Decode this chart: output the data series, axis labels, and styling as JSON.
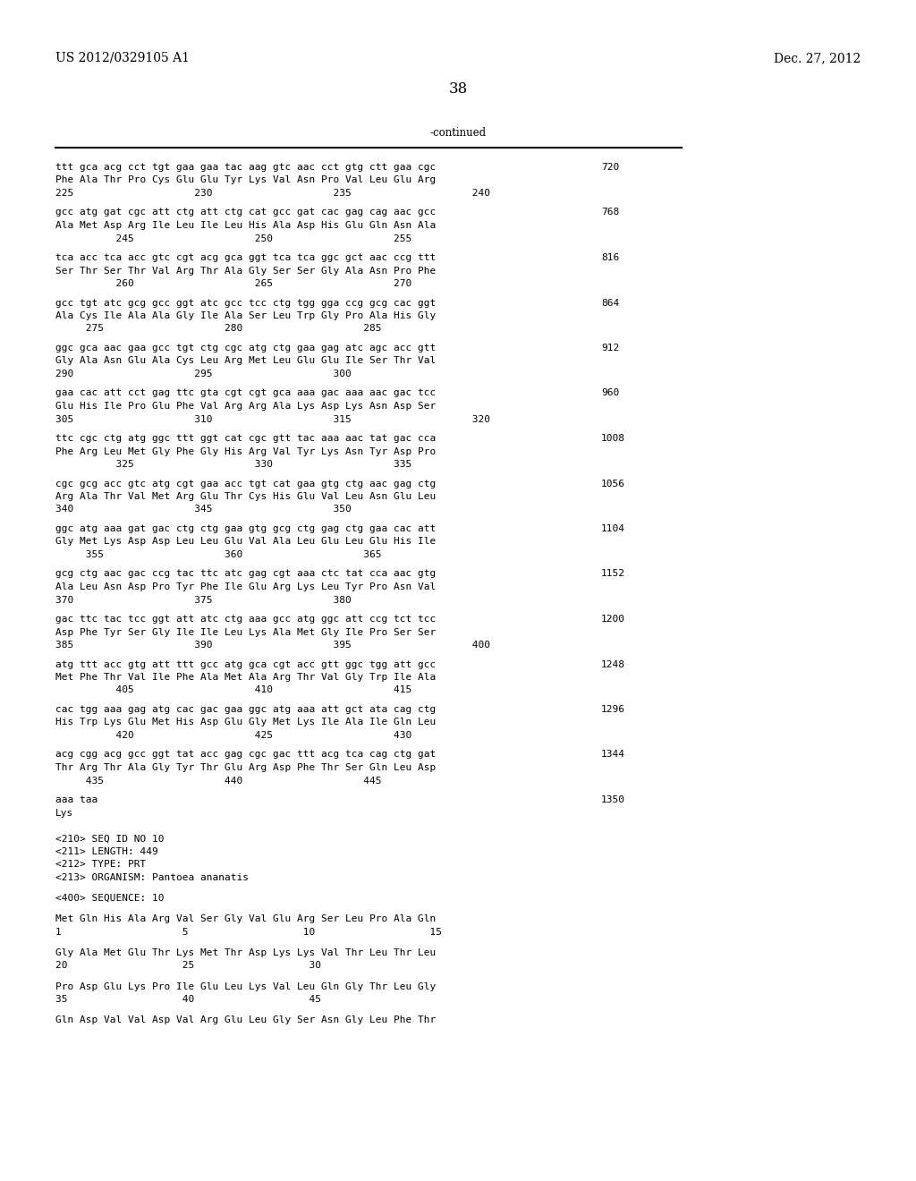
{
  "header_left": "US 2012/0329105 A1",
  "header_right": "Dec. 27, 2012",
  "page_number": "38",
  "continued_label": "-continued",
  "background_color": "#ffffff",
  "text_color": "#000000",
  "font_size": 8.0,
  "header_font_size": 10.0,
  "page_num_font_size": 12.0,
  "seq_blocks": [
    {
      "number": "720",
      "line1": "ttt gca acg cct tgt gaa gaa tac aag gtc aac cct gtg ctt gaa cgc",
      "line2": "Phe Ala Thr Pro Cys Glu Glu Tyr Lys Val Asn Pro Val Leu Glu Arg",
      "line3": "225                    230                    235                    240"
    },
    {
      "number": "768",
      "line1": "gcc atg gat cgc att ctg att ctg cat gcc gat cac gag cag aac gcc",
      "line2": "Ala Met Asp Arg Ile Leu Ile Leu His Ala Asp His Glu Gln Asn Ala",
      "line3": "          245                    250                    255"
    },
    {
      "number": "816",
      "line1": "tca acc tca acc gtc cgt acg gca ggt tca tca ggc gct aac ccg ttt",
      "line2": "Ser Thr Ser Thr Val Arg Thr Ala Gly Ser Ser Gly Ala Asn Pro Phe",
      "line3": "          260                    265                    270"
    },
    {
      "number": "864",
      "line1": "gcc tgt atc gcg gcc ggt atc gcc tcc ctg tgg gga ccg gcg cac ggt",
      "line2": "Ala Cys Ile Ala Ala Gly Ile Ala Ser Leu Trp Gly Pro Ala His Gly",
      "line3": "     275                    280                    285"
    },
    {
      "number": "912",
      "line1": "ggc gca aac gaa gcc tgt ctg cgc atg ctg gaa gag atc agc acc gtt",
      "line2": "Gly Ala Asn Glu Ala Cys Leu Arg Met Leu Glu Glu Ile Ser Thr Val",
      "line3": "290                    295                    300"
    },
    {
      "number": "960",
      "line1": "gaa cac att cct gag ttc gta cgt cgt gca aaa gac aaa aac gac tcc",
      "line2": "Glu His Ile Pro Glu Phe Val Arg Arg Ala Lys Asp Lys Asn Asp Ser",
      "line3": "305                    310                    315                    320"
    },
    {
      "number": "1008",
      "line1": "ttc cgc ctg atg ggc ttt ggt cat cgc gtt tac aaa aac tat gac cca",
      "line2": "Phe Arg Leu Met Gly Phe Gly His Arg Val Tyr Lys Asn Tyr Asp Pro",
      "line3": "          325                    330                    335"
    },
    {
      "number": "1056",
      "line1": "cgc gcg acc gtc atg cgt gaa acc tgt cat gaa gtg ctg aac gag ctg",
      "line2": "Arg Ala Thr Val Met Arg Glu Thr Cys His Glu Val Leu Asn Glu Leu",
      "line3": "340                    345                    350"
    },
    {
      "number": "1104",
      "line1": "ggc atg aaa gat gac ctg ctg gaa gtg gcg ctg gag ctg gaa cac att",
      "line2": "Gly Met Lys Asp Asp Leu Leu Glu Val Ala Leu Glu Leu Glu His Ile",
      "line3": "     355                    360                    365"
    },
    {
      "number": "1152",
      "line1": "gcg ctg aac gac ccg tac ttc atc gag cgt aaa ctc tat cca aac gtg",
      "line2": "Ala Leu Asn Asp Pro Tyr Phe Ile Glu Arg Lys Leu Tyr Pro Asn Val",
      "line3": "370                    375                    380"
    },
    {
      "number": "1200",
      "line1": "gac ttc tac tcc ggt att atc ctg aaa gcc atg ggc att ccg tct tcc",
      "line2": "Asp Phe Tyr Ser Gly Ile Ile Leu Lys Ala Met Gly Ile Pro Ser Ser",
      "line3": "385                    390                    395                    400"
    },
    {
      "number": "1248",
      "line1": "atg ttt acc gtg att ttt gcc atg gca cgt acc gtt ggc tgg att gcc",
      "line2": "Met Phe Thr Val Ile Phe Ala Met Ala Arg Thr Val Gly Trp Ile Ala",
      "line3": "          405                    410                    415"
    },
    {
      "number": "1296",
      "line1": "cac tgg aaa gag atg cac gac gaa ggc atg aaa att gct ata cag ctg",
      "line2": "His Trp Lys Glu Met His Asp Glu Gly Met Lys Ile Ala Ile Gln Leu",
      "line3": "          420                    425                    430"
    },
    {
      "number": "1344",
      "line1": "acg cgg acg gcc ggt tat acc gag cgc gac ttt acg tca cag ctg gat",
      "line2": "Thr Arg Thr Ala Gly Tyr Thr Glu Arg Asp Phe Thr Ser Gln Leu Asp",
      "line3": "     435                    440                    445"
    },
    {
      "number": "1350",
      "line1": "aaa taa",
      "line2": "Lys",
      "line3": ""
    }
  ],
  "meta_lines": [
    "<210> SEQ ID NO 10",
    "<211> LENGTH: 449",
    "<212> TYPE: PRT",
    "<213> ORGANISM: Pantoea ananatis",
    "",
    "<400> SEQUENCE: 10",
    "",
    "Met Gln His Ala Arg Val Ser Gly Val Glu Arg Ser Leu Pro Ala Gln",
    "1                    5                   10                   15",
    "",
    "Gly Ala Met Glu Thr Lys Met Thr Asp Lys Lys Val Thr Leu Thr Leu",
    "20                   25                   30",
    "",
    "Pro Asp Glu Lys Pro Ile Glu Leu Lys Val Leu Gln Gly Thr Leu Gly",
    "35                   40                   45",
    "",
    "Gln Asp Val Val Asp Val Arg Glu Leu Gly Ser Asn Gly Leu Phe Thr"
  ]
}
